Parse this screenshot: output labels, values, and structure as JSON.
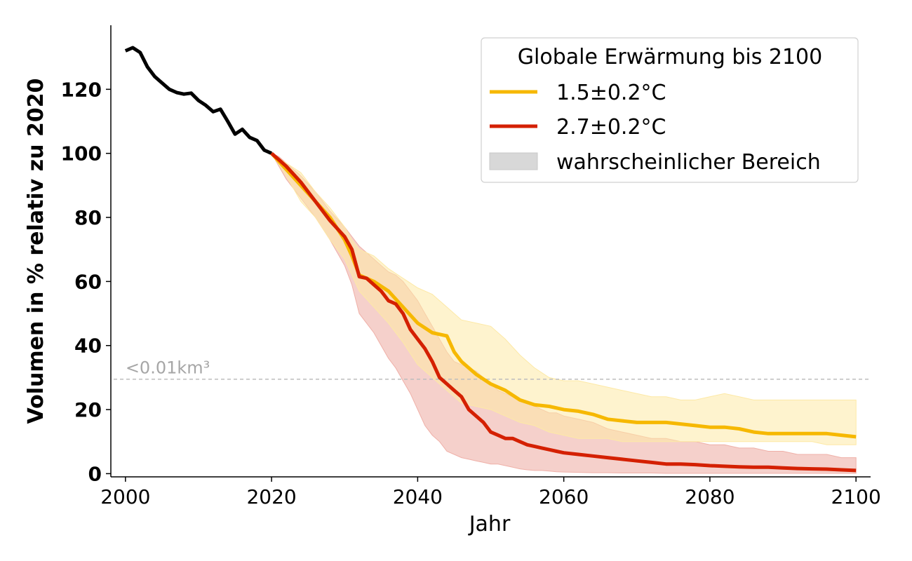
{
  "chart_data": {
    "type": "line",
    "xlabel": "Jahr",
    "ylabel": "Volumen in % relativ zu 2020",
    "xlim": [
      1998,
      2102
    ],
    "ylim": [
      -1,
      140
    ],
    "x_ticks": [
      2000,
      2020,
      2040,
      2060,
      2080,
      2100
    ],
    "y_ticks": [
      0,
      20,
      40,
      60,
      80,
      100,
      120
    ],
    "grid": false,
    "legend": {
      "title": "Globale Erwärmung bis 2100",
      "placement": "top-right",
      "range_label": "wahrscheinlicher Bereich"
    },
    "threshold": {
      "y": 29.5,
      "label": "<0.01km³"
    },
    "colors": {
      "observed": "#000000",
      "scenario_15": "#f6b800",
      "scenario_27": "#d42000",
      "range_15": "#fde9a6",
      "range_27": "#efb0a8",
      "legend_patch": "#d8d8d8",
      "threshold": "#bdbdbd"
    },
    "observed": {
      "x": [
        2000,
        2001,
        2002,
        2003,
        2004,
        2005,
        2006,
        2007,
        2008,
        2009,
        2010,
        2011,
        2012,
        2013,
        2014,
        2015,
        2016,
        2017,
        2018,
        2019,
        2020
      ],
      "y": [
        132,
        133,
        131.5,
        127,
        124,
        122,
        120,
        119,
        118.5,
        118.8,
        116.5,
        115,
        113,
        113.8,
        110,
        106,
        107.5,
        105,
        104,
        101,
        100
      ]
    },
    "series": [
      {
        "name": "1.5±0.2°C",
        "x": [
          2020,
          2022,
          2024,
          2026,
          2028,
          2030,
          2031,
          2032,
          2034,
          2036,
          2038,
          2040,
          2042,
          2044,
          2045,
          2046,
          2048,
          2050,
          2052,
          2054,
          2056,
          2058,
          2060,
          2062,
          2064,
          2066,
          2068,
          2070,
          2072,
          2074,
          2076,
          2078,
          2080,
          2082,
          2084,
          2086,
          2088,
          2090,
          2092,
          2094,
          2096,
          2098,
          2100
        ],
        "y": [
          100,
          95,
          90,
          85,
          80,
          73,
          68,
          62,
          60,
          57,
          52,
          47,
          44,
          43,
          38,
          35,
          31,
          28,
          26,
          23,
          21.5,
          21,
          20,
          19.5,
          18.5,
          17,
          16.5,
          16,
          16,
          16,
          15.5,
          15,
          14.5,
          14.5,
          14,
          13,
          12.5,
          12.5,
          12.5,
          12.5,
          12.5,
          12,
          11.5
        ],
        "upper": [
          100,
          97,
          94,
          88,
          83,
          77,
          73,
          70,
          68,
          64,
          61,
          58,
          56,
          52,
          50,
          48,
          47,
          46,
          42,
          37,
          33,
          30,
          29,
          29,
          28,
          27,
          26,
          25,
          24,
          24,
          23,
          23,
          24,
          25,
          24,
          23,
          23,
          23,
          23,
          23,
          23,
          23,
          23
        ],
        "lower": [
          100,
          93,
          85,
          80,
          73,
          67,
          62,
          57,
          52,
          47,
          41,
          34,
          30,
          26,
          24,
          22,
          21,
          20,
          18,
          16,
          15,
          13,
          12,
          11,
          11,
          11,
          10,
          10,
          10,
          10,
          10,
          10,
          10,
          10,
          10,
          10,
          10,
          10,
          10,
          10,
          9,
          9,
          9
        ]
      },
      {
        "name": "2.7±0.2°C",
        "x": [
          2020,
          2021,
          2022,
          2024,
          2026,
          2028,
          2030,
          2031,
          2032,
          2033,
          2034,
          2035,
          2036,
          2037,
          2038,
          2039,
          2040,
          2041,
          2042,
          2043,
          2044,
          2045,
          2046,
          2047,
          2048,
          2049,
          2050,
          2051,
          2052,
          2053,
          2054,
          2055,
          2056,
          2057,
          2058,
          2059,
          2060,
          2062,
          2064,
          2066,
          2068,
          2070,
          2072,
          2074,
          2076,
          2078,
          2080,
          2082,
          2084,
          2086,
          2088,
          2090,
          2092,
          2094,
          2096,
          2098,
          2100
        ],
        "y": [
          100,
          98,
          96,
          91,
          85,
          79,
          74,
          70,
          61.5,
          61,
          59,
          57,
          54,
          53,
          50,
          45,
          42,
          39,
          35,
          30,
          28,
          26,
          24,
          20,
          18,
          16,
          13,
          12,
          11,
          11,
          10,
          9,
          8.5,
          8,
          7.5,
          7,
          6.5,
          6,
          5.5,
          5,
          4.5,
          4,
          3.5,
          3,
          3,
          2.8,
          2.5,
          2.3,
          2.1,
          2,
          2,
          1.8,
          1.6,
          1.5,
          1.4,
          1.2,
          1
        ],
        "upper": [
          100,
          99,
          97,
          93,
          88,
          82,
          77,
          74,
          71,
          69,
          67,
          65,
          63,
          62,
          60,
          57,
          54,
          50,
          46,
          42,
          38,
          35,
          34,
          33,
          32,
          30,
          28,
          26,
          25,
          24,
          23,
          22,
          21,
          20,
          19,
          19,
          18,
          17,
          16,
          14,
          13,
          12,
          11,
          11,
          10,
          10,
          9,
          9,
          8,
          8,
          7,
          7,
          6,
          6,
          6,
          5,
          5
        ],
        "lower": [
          100,
          96,
          92,
          86,
          80,
          73,
          65,
          59,
          50,
          47,
          44,
          40,
          36,
          33,
          29,
          25,
          20,
          15,
          12,
          10,
          7,
          6,
          5,
          4.5,
          4,
          3.5,
          3,
          3,
          2.5,
          2,
          1.5,
          1.2,
          1,
          1,
          0.8,
          0.6,
          0.5,
          0.4,
          0.3,
          0.3,
          0.2,
          0.2,
          0.2,
          0.1,
          0.1,
          0.1,
          0.1,
          0.1,
          0.1,
          0.1,
          0.1,
          0.1,
          0.1,
          0.1,
          0.1,
          0.1,
          0.1
        ]
      }
    ]
  }
}
